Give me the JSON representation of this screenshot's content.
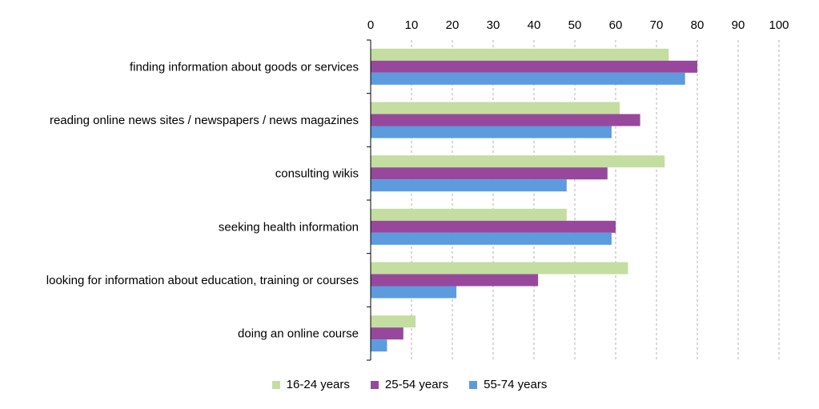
{
  "chart_data": {
    "type": "bar",
    "orientation": "horizontal",
    "categories": [
      "finding information about goods or services",
      "reading online news sites / newspapers / news magazines",
      "consulting wikis",
      "seeking health information",
      "looking for information about education, training or courses",
      "doing an online course"
    ],
    "series": [
      {
        "name": "16-24 years",
        "color": "#c3dea0",
        "values": [
          73,
          61,
          72,
          48,
          63,
          11
        ]
      },
      {
        "name": "25-54 years",
        "color": "#97489c",
        "values": [
          80,
          66,
          58,
          60,
          41,
          8
        ]
      },
      {
        "name": "55-74 years",
        "color": "#5b9bde",
        "values": [
          77,
          59,
          48,
          59,
          21,
          4
        ]
      }
    ],
    "xlim": [
      0,
      100
    ],
    "xticks": [
      "0",
      "10",
      "20",
      "30",
      "40",
      "50",
      "60",
      "70",
      "80",
      "90",
      "100"
    ],
    "grid": "vertical dashed",
    "xaxis_position": "top",
    "legend_position": "bottom",
    "title": "",
    "xlabel": "",
    "ylabel": ""
  }
}
